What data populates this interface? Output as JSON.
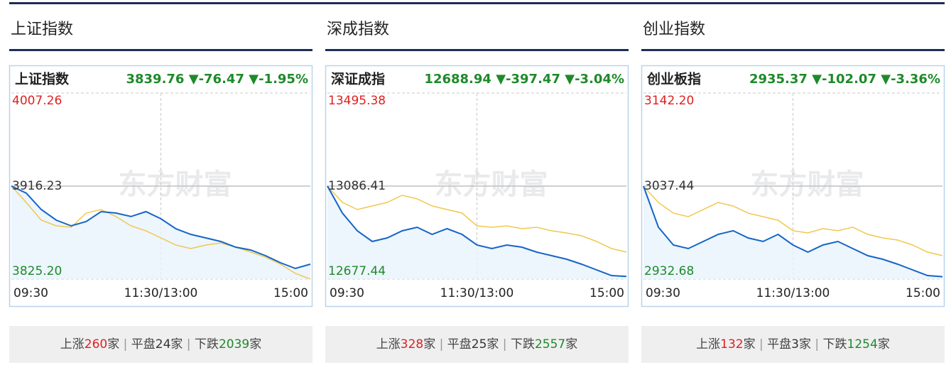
{
  "panels": [
    {
      "title": "上证指数",
      "chart": {
        "type": "line",
        "name": "上证指数",
        "quote": "3839.76 ▼-76.47 ▼-1.95%",
        "watermark": "东方财富",
        "ylim": [
          3825.2,
          4007.26
        ],
        "yticks": [
          {
            "value": 4007.26,
            "label": "4007.26"
          },
          {
            "value": 3916.23,
            "label": "3916.23"
          },
          {
            "value": 3825.2,
            "label": "3825.20"
          }
        ],
        "xticks": [
          "09:30",
          "11:30/13:00",
          "15:00"
        ],
        "series": [
          {
            "color": "#1565c8",
            "values": [
              3916.2,
              3909.3,
              3893.3,
              3882.9,
              3877.3,
              3881.5,
              3891.2,
              3889.8,
              3886.4,
              3891.2,
              3884.3,
              3874.5,
              3869.0,
              3865.5,
              3862.0,
              3856.5,
              3853.7,
              3848.1,
              3841.2,
              3835.6,
              3839.8
            ]
          },
          {
            "color": "#f0c850",
            "values": [
              3916.2,
              3900.2,
              3882.9,
              3877.3,
              3875.9,
              3889.8,
              3893.3,
              3886.4,
              3877.3,
              3872.4,
              3865.5,
              3858.5,
              3855.1,
              3858.5,
              3860.6,
              3856.5,
              3851.7,
              3846.7,
              3839.8,
              3830.8,
              3825.2
            ]
          }
        ]
      },
      "stats": [
        {
          "label": "上涨",
          "count": 260,
          "unit": "家"
        },
        {
          "label": "平盘",
          "count": 24,
          "unit": "家"
        },
        {
          "label": "下跌",
          "count": 2039,
          "unit": "家"
        }
      ]
    },
    {
      "title": "深成指数",
      "chart": {
        "type": "line",
        "name": "深证成指",
        "quote": "12688.94 ▼-397.47 ▼-3.04%",
        "watermark": "东方财富",
        "ylim": [
          12677.44,
          13495.38
        ],
        "yticks": [
          13495.38,
          13086.41,
          12677.44
        ],
        "xticks": [
          "09:30",
          "11:30/13:00",
          "15:00"
        ],
        "series": [
          {
            "color": "#1565c8",
            "values": [
              13086.4,
              12967.8,
              12889.7,
              12842.9,
              12858.5,
              12889.7,
              12905.4,
              12874.1,
              12899.1,
              12874.1,
              12827.3,
              12811.7,
              12827.3,
              12817.9,
              12796.1,
              12780.5,
              12764.9,
              12743.0,
              12718.1,
              12693.1,
              12688.9
            ]
          },
          {
            "color": "#f0c850",
            "values": [
              13086.4,
              13014.6,
              12983.4,
              12999.0,
              13014.6,
              13045.8,
              13030.2,
              12999.0,
              12983.4,
              12967.8,
              12911.6,
              12905.4,
              12911.6,
              12899.1,
              12905.4,
              12889.7,
              12880.4,
              12867.9,
              12842.9,
              12811.7,
              12796.1
            ]
          }
        ]
      },
      "stats": [
        {
          "label": "上涨",
          "count": 328,
          "unit": "家"
        },
        {
          "label": "平盘",
          "count": 25,
          "unit": "家"
        },
        {
          "label": "下跌",
          "count": 2557,
          "unit": "家"
        }
      ]
    },
    {
      "title": "创业指数",
      "chart": {
        "type": "line",
        "name": "创业板指",
        "quote": "2935.37 ▼-102.07 ▼-3.36%",
        "watermark": "东方财富",
        "ylim": [
          2932.68,
          3142.2
        ],
        "yticks": [
          {
            "value": 3142.2,
            "label": "3142.20"
          },
          {
            "value": 3037.44,
            "label": "3037.44"
          },
          {
            "value": 2932.68,
            "label": "2932.68"
          }
        ],
        "xticks": [
          "09:30",
          "11:30/13:00",
          "15:00"
        ],
        "series": [
          {
            "color": "#1565c8",
            "values": [
              3037.4,
              2991.1,
              2971.1,
              2967.1,
              2975.1,
              2983.1,
              2987.1,
              2979.1,
              2975.1,
              2983.1,
              2971.1,
              2963.1,
              2971.1,
              2975.1,
              2967.1,
              2959.1,
              2955.1,
              2949.5,
              2943.1,
              2936.7,
              2935.4
            ]
          },
          {
            "color": "#f0c850",
            "values": [
              3037.4,
              3019.0,
              3007.0,
              3003.0,
              3011.0,
              3019.0,
              3015.0,
              3007.0,
              3003.0,
              2999.0,
              2987.1,
              2984.7,
              2989.5,
              2987.1,
              2991.1,
              2983.1,
              2979.1,
              2976.7,
              2971.1,
              2963.1,
              2959.1
            ]
          }
        ]
      },
      "stats": [
        {
          "label": "上涨",
          "count": 132,
          "unit": "家"
        },
        {
          "label": "平盘",
          "count": 3,
          "unit": "家"
        },
        {
          "label": "下跌",
          "count": 1254,
          "unit": "家"
        }
      ]
    }
  ]
}
